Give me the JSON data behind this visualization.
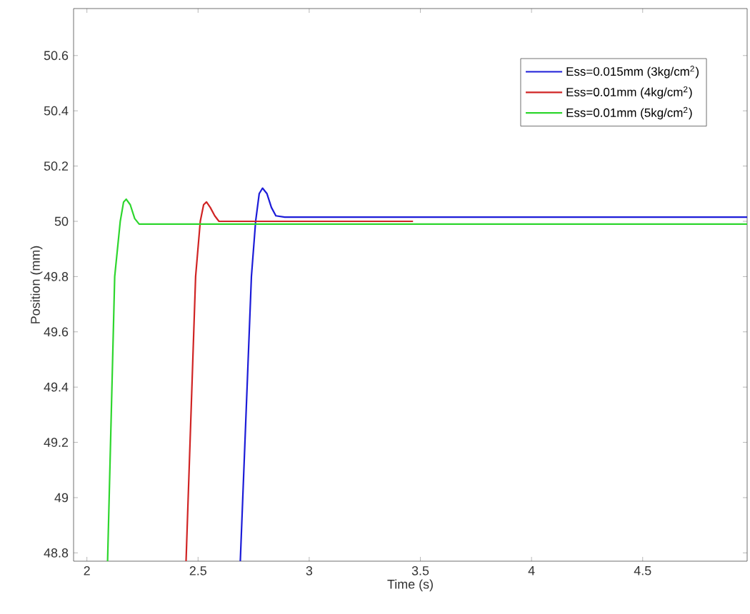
{
  "chart_data": {
    "type": "line",
    "xlabel": "Time (s)",
    "ylabel": "Position (mm)",
    "xlim": [
      1.94,
      4.97
    ],
    "ylim": [
      48.77,
      50.77
    ],
    "xticks": [
      2,
      2.5,
      3,
      3.5,
      4,
      4.5
    ],
    "yticks": [
      48.8,
      49,
      49.2,
      49.4,
      49.6,
      49.8,
      50,
      50.2,
      50.4,
      50.6
    ],
    "grid": false,
    "legend": "top right",
    "line_style": "solid",
    "series": [
      {
        "name": "Ess=0.015mm (3kg/cm$^{2}$)",
        "color": "#1c1cd8",
        "x": [
          2.69,
          2.74,
          2.759,
          2.775,
          2.79,
          2.81,
          2.83,
          2.85,
          2.89,
          4.97
        ],
        "values": [
          48.77,
          49.8,
          50.0,
          50.1,
          50.12,
          50.1,
          50.05,
          50.02,
          50.015,
          50.015
        ]
      },
      {
        "name": "Ess=0.01mm (4kg/cm$^{2}$)",
        "color": "#d02424",
        "x": [
          2.446,
          2.489,
          2.51,
          2.525,
          2.538,
          2.555,
          2.575,
          2.594,
          3.467
        ],
        "values": [
          48.77,
          49.8,
          50.0,
          50.06,
          50.07,
          50.05,
          50.02,
          50.0,
          50.0
        ]
      },
      {
        "name": "Ess=0.01mm (5kg/cm$^{2}$)",
        "color": "#2ed62e",
        "x": [
          2.093,
          2.125,
          2.15,
          2.165,
          2.177,
          2.195,
          2.215,
          2.235,
          4.97
        ],
        "values": [
          48.77,
          49.8,
          50.0,
          50.07,
          50.08,
          50.06,
          50.01,
          49.99,
          49.99
        ]
      }
    ]
  }
}
